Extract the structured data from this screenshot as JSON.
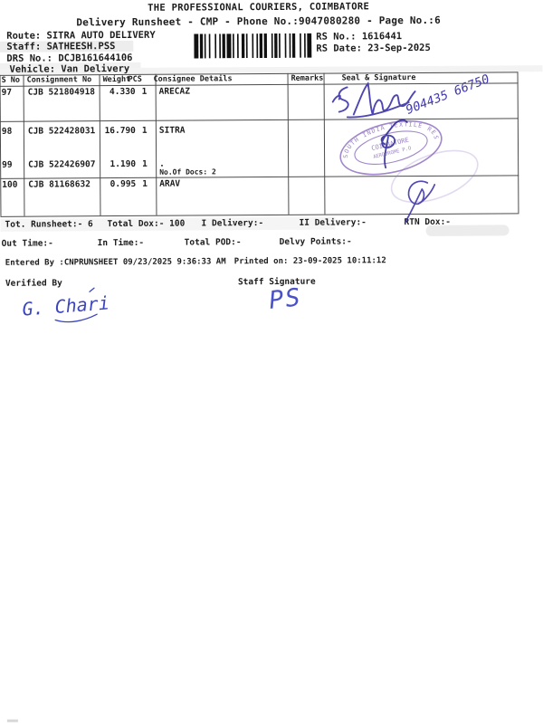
{
  "document": {
    "title": "THE PROFESSIONAL COURIERS, COIMBATORE",
    "subtitle": "Delivery Runsheet - CMP - Phone No.:9047080280 - Page No.:6"
  },
  "meta": {
    "route_line": "Route: SITRA AUTO DELIVERY",
    "staff_line": "Staff: SATHEESH.PSS",
    "drs_line": "DRS No.: DCJB161644106",
    "vehicle_line": "Vehicle: Van Delivery",
    "rs_no_line": "RS No.: 1616441",
    "rs_date_line": "RS Date: 23-Sep-2025"
  },
  "table": {
    "headers": {
      "sno": "S No",
      "consignment": "Consignment No",
      "weight": "Weight",
      "pcs": "PCS",
      "consignee": "Consignee Details",
      "remarks": "Remarks",
      "seal": "Seal & Signature"
    },
    "rows": [
      {
        "sno": "97",
        "consignment": "CJB 521804918",
        "weight": "4.330",
        "pcs": "1",
        "consignee": "ARECAZ",
        "note": "",
        "remarks": ""
      },
      {
        "sno": "98",
        "consignment": "CJB 522428031",
        "weight": "16.790",
        "pcs": "1",
        "consignee": "SITRA",
        "note": "",
        "remarks": ""
      },
      {
        "sno": "99",
        "consignment": "CJB 522426907",
        "weight": "1.190",
        "pcs": "1",
        "consignee": ".",
        "note": "No.Of Docs: 2",
        "remarks": ""
      },
      {
        "sno": "100",
        "consignment": "CJB 81168632",
        "weight": "0.995",
        "pcs": "1",
        "consignee": "ARAV",
        "note": "",
        "remarks": ""
      }
    ]
  },
  "summary": {
    "tot_runsheet": "Tot. Runsheet:- 6",
    "total_dox": "Total Dox:- 100",
    "i_delivery": "I Delivery:-",
    "ii_delivery": "II Delivery:-",
    "rtn_dox": "RTN Dox:-",
    "out_time": "Out Time:-",
    "in_time": "In Time:-",
    "total_pod": "Total POD:-",
    "delvy_points": "Delvy Points:-"
  },
  "footer": {
    "entered_by": "Entered By :CNPRUNSHEET 09/23/2025 9:36:33 AM",
    "printed_on": "Printed on: 23-09-2025 10:11:12",
    "verified_by_label": "Verified By",
    "staff_signature_label": "Staff Signature"
  },
  "handwriting": {
    "phone_number": "904435 66750",
    "verified_by": "G. Chari",
    "staff_initials": "PS"
  },
  "stamp": {
    "arc_text": "SOUTH INDIA TEXTILE RESEARCH ASSN",
    "line1": "COIMBATORE",
    "line2": "AERODROME P.O"
  },
  "barcode": {
    "pattern": "3121121312112131121221131211212311211312112312113"
  },
  "colors": {
    "ink_blue": "#3f37ab",
    "stamp_purple": "#8a6abf",
    "text": "#1c1c1c"
  }
}
